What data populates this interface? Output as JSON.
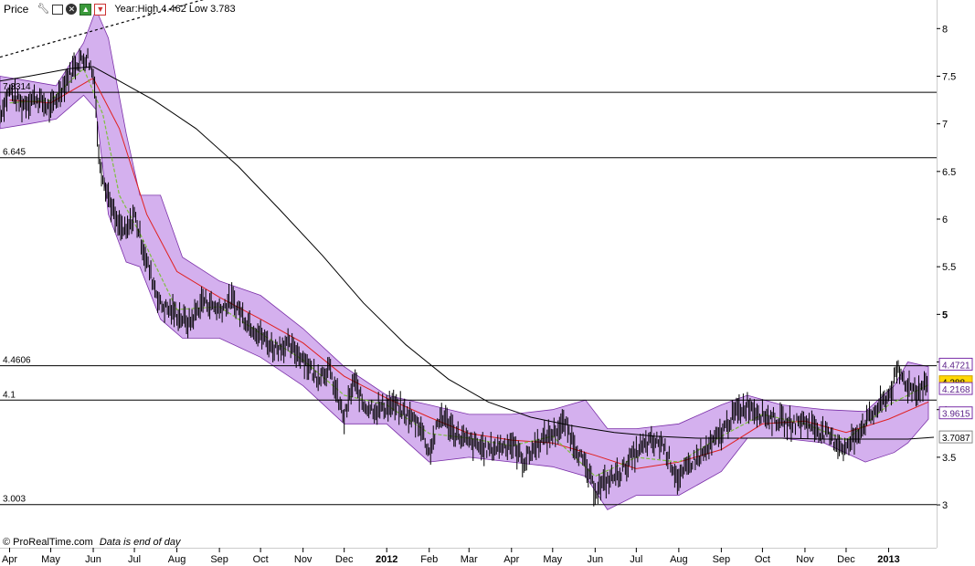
{
  "toolbar": {
    "title": "Price",
    "info": "Year:High 4.462 Low 3.783",
    "icons": [
      "wrench-icon",
      "window-icon",
      "close-icon",
      "arrow-up-icon",
      "arrow-down-icon"
    ]
  },
  "footer": {
    "brand": "© ProRealTime.com",
    "note": "Data is end of day"
  },
  "colors": {
    "band_fill": "#d4b0ee",
    "band_edge": "#7a2fa8",
    "ma_fast": "#7fbf3f",
    "ma_mid": "#e02020",
    "ma_slow": "#000000",
    "candle": "#000000",
    "current_label_bg": "#ffd800"
  },
  "chart_data": {
    "type": "line",
    "ylim": [
      2.55,
      8.3
    ],
    "yticks": [
      3,
      3.5,
      4,
      4.5,
      5,
      5.5,
      6,
      6.5,
      7,
      7.5,
      8
    ],
    "ytick_labels": [
      "3",
      "3.5",
      "4",
      "4.5",
      "5",
      "5.5",
      "6",
      "6.5",
      "7",
      "7.5",
      "8"
    ],
    "xlim": [
      "2011-03-25",
      "2013-02-05"
    ],
    "xticks": [
      {
        "date": "2011-04-01",
        "label": "Apr",
        "bold": false
      },
      {
        "date": "2011-05-01",
        "label": "May",
        "bold": false
      },
      {
        "date": "2011-06-01",
        "label": "Jun",
        "bold": false
      },
      {
        "date": "2011-07-01",
        "label": "Jul",
        "bold": false
      },
      {
        "date": "2011-08-01",
        "label": "Aug",
        "bold": false
      },
      {
        "date": "2011-09-01",
        "label": "Sep",
        "bold": false
      },
      {
        "date": "2011-10-01",
        "label": "Oct",
        "bold": false
      },
      {
        "date": "2011-11-01",
        "label": "Nov",
        "bold": false
      },
      {
        "date": "2011-12-01",
        "label": "Dec",
        "bold": false
      },
      {
        "date": "2012-01-01",
        "label": "2012",
        "bold": true
      },
      {
        "date": "2012-02-01",
        "label": "Feb",
        "bold": false
      },
      {
        "date": "2012-03-01",
        "label": "Mar",
        "bold": false
      },
      {
        "date": "2012-04-01",
        "label": "Apr",
        "bold": false
      },
      {
        "date": "2012-05-01",
        "label": "May",
        "bold": false
      },
      {
        "date": "2012-06-01",
        "label": "Jun",
        "bold": false
      },
      {
        "date": "2012-07-01",
        "label": "Jul",
        "bold": false
      },
      {
        "date": "2012-08-01",
        "label": "Aug",
        "bold": false
      },
      {
        "date": "2012-09-01",
        "label": "Sep",
        "bold": false
      },
      {
        "date": "2012-10-01",
        "label": "Oct",
        "bold": false
      },
      {
        "date": "2012-11-01",
        "label": "Nov",
        "bold": false
      },
      {
        "date": "2012-12-01",
        "label": "Dec",
        "bold": false
      },
      {
        "date": "2013-01-01",
        "label": "2013",
        "bold": true
      }
    ],
    "horizontal_levels": [
      {
        "value": 7.3314,
        "label": "7.3314"
      },
      {
        "value": 6.645,
        "label": "6.645"
      },
      {
        "value": 4.4606,
        "label": "4.4606"
      },
      {
        "value": 4.1,
        "label": "4.1"
      },
      {
        "value": 3.003,
        "label": "3.003"
      }
    ],
    "price": [
      [
        "2011-03-25",
        7.1
      ],
      [
        "2011-04-01",
        7.35
      ],
      [
        "2011-04-10",
        7.2
      ],
      [
        "2011-04-20",
        7.28
      ],
      [
        "2011-05-01",
        7.15
      ],
      [
        "2011-05-10",
        7.4
      ],
      [
        "2011-05-20",
        7.65
      ],
      [
        "2011-05-28",
        7.7
      ],
      [
        "2011-06-02",
        7.45
      ],
      [
        "2011-06-05",
        6.65
      ],
      [
        "2011-06-10",
        6.35
      ],
      [
        "2011-06-18",
        5.95
      ],
      [
        "2011-06-25",
        5.85
      ],
      [
        "2011-07-01",
        6.05
      ],
      [
        "2011-07-10",
        5.55
      ],
      [
        "2011-07-20",
        5.1
      ],
      [
        "2011-08-01",
        5.0
      ],
      [
        "2011-08-10",
        4.9
      ],
      [
        "2011-08-20",
        5.15
      ],
      [
        "2011-09-01",
        5.05
      ],
      [
        "2011-09-10",
        5.15
      ],
      [
        "2011-09-20",
        4.95
      ],
      [
        "2011-10-01",
        4.78
      ],
      [
        "2011-10-10",
        4.65
      ],
      [
        "2011-10-20",
        4.68
      ],
      [
        "2011-11-01",
        4.55
      ],
      [
        "2011-11-10",
        4.35
      ],
      [
        "2011-11-20",
        4.42
      ],
      [
        "2011-12-01",
        3.9
      ],
      [
        "2011-12-08",
        4.3
      ],
      [
        "2011-12-15",
        4.05
      ],
      [
        "2011-12-25",
        4.0
      ],
      [
        "2012-01-05",
        4.05
      ],
      [
        "2012-01-15",
        3.95
      ],
      [
        "2012-01-25",
        3.85
      ],
      [
        "2012-02-01",
        3.55
      ],
      [
        "2012-02-10",
        3.95
      ],
      [
        "2012-02-20",
        3.75
      ],
      [
        "2012-03-01",
        3.65
      ],
      [
        "2012-03-15",
        3.58
      ],
      [
        "2012-04-01",
        3.65
      ],
      [
        "2012-04-10",
        3.45
      ],
      [
        "2012-04-20",
        3.65
      ],
      [
        "2012-05-01",
        3.75
      ],
      [
        "2012-05-10",
        3.85
      ],
      [
        "2012-05-20",
        3.55
      ],
      [
        "2012-06-01",
        3.15
      ],
      [
        "2012-06-10",
        3.25
      ],
      [
        "2012-06-20",
        3.35
      ],
      [
        "2012-07-01",
        3.55
      ],
      [
        "2012-07-10",
        3.65
      ],
      [
        "2012-07-20",
        3.65
      ],
      [
        "2012-08-01",
        3.25
      ],
      [
        "2012-08-10",
        3.45
      ],
      [
        "2012-08-20",
        3.55
      ],
      [
        "2012-09-01",
        3.75
      ],
      [
        "2012-09-10",
        3.95
      ],
      [
        "2012-09-20",
        4.05
      ],
      [
        "2012-10-01",
        3.95
      ],
      [
        "2012-10-10",
        3.9
      ],
      [
        "2012-10-20",
        3.85
      ],
      [
        "2012-11-01",
        3.88
      ],
      [
        "2012-11-10",
        3.8
      ],
      [
        "2012-11-20",
        3.7
      ],
      [
        "2012-12-01",
        3.58
      ],
      [
        "2012-12-10",
        3.78
      ],
      [
        "2012-12-20",
        3.95
      ],
      [
        "2013-01-01",
        4.15
      ],
      [
        "2013-01-08",
        4.4
      ],
      [
        "2013-01-15",
        4.25
      ],
      [
        "2013-01-22",
        4.2
      ],
      [
        "2013-01-30",
        4.29
      ]
    ],
    "ma_fast": [
      [
        "2011-04-01",
        7.22
      ],
      [
        "2011-05-01",
        7.25
      ],
      [
        "2011-05-25",
        7.58
      ],
      [
        "2011-06-08",
        7.1
      ],
      [
        "2011-06-20",
        6.25
      ],
      [
        "2011-07-05",
        5.85
      ],
      [
        "2011-08-01",
        5.05
      ],
      [
        "2011-09-01",
        5.08
      ],
      [
        "2011-10-01",
        4.8
      ],
      [
        "2011-11-01",
        4.52
      ],
      [
        "2011-12-01",
        4.15
      ],
      [
        "2012-01-01",
        4.05
      ],
      [
        "2012-02-01",
        3.75
      ],
      [
        "2012-03-01",
        3.7
      ],
      [
        "2012-04-01",
        3.62
      ],
      [
        "2012-05-01",
        3.72
      ],
      [
        "2012-06-01",
        3.3
      ],
      [
        "2012-07-01",
        3.5
      ],
      [
        "2012-08-01",
        3.45
      ],
      [
        "2012-09-01",
        3.72
      ],
      [
        "2012-10-01",
        3.95
      ],
      [
        "2012-11-01",
        3.85
      ],
      [
        "2012-12-01",
        3.68
      ],
      [
        "2013-01-01",
        4.05
      ],
      [
        "2013-01-30",
        4.26
      ]
    ],
    "ma_mid": [
      [
        "2011-04-01",
        7.25
      ],
      [
        "2011-05-01",
        7.22
      ],
      [
        "2011-06-01",
        7.48
      ],
      [
        "2011-06-20",
        6.95
      ],
      [
        "2011-07-10",
        6.05
      ],
      [
        "2011-08-01",
        5.45
      ],
      [
        "2011-09-01",
        5.18
      ],
      [
        "2011-10-01",
        4.95
      ],
      [
        "2011-11-01",
        4.7
      ],
      [
        "2011-12-01",
        4.35
      ],
      [
        "2012-01-01",
        4.12
      ],
      [
        "2012-02-01",
        3.92
      ],
      [
        "2012-03-01",
        3.75
      ],
      [
        "2012-04-01",
        3.68
      ],
      [
        "2012-05-01",
        3.65
      ],
      [
        "2012-06-01",
        3.52
      ],
      [
        "2012-07-01",
        3.38
      ],
      [
        "2012-08-01",
        3.45
      ],
      [
        "2012-09-01",
        3.58
      ],
      [
        "2012-10-01",
        3.85
      ],
      [
        "2012-11-01",
        3.88
      ],
      [
        "2012-12-01",
        3.76
      ],
      [
        "2013-01-01",
        3.9
      ],
      [
        "2013-01-30",
        4.08
      ]
    ],
    "ma_slow": [
      [
        "2011-03-25",
        7.45
      ],
      [
        "2011-04-15",
        7.5
      ],
      [
        "2011-05-15",
        7.58
      ],
      [
        "2011-06-01",
        7.6
      ],
      [
        "2011-06-20",
        7.45
      ],
      [
        "2011-07-15",
        7.25
      ],
      [
        "2011-08-15",
        6.95
      ],
      [
        "2011-09-15",
        6.55
      ],
      [
        "2011-10-15",
        6.1
      ],
      [
        "2011-11-15",
        5.62
      ],
      [
        "2011-12-15",
        5.12
      ],
      [
        "2012-01-15",
        4.68
      ],
      [
        "2012-02-15",
        4.32
      ],
      [
        "2012-03-15",
        4.08
      ],
      [
        "2012-04-15",
        3.92
      ],
      [
        "2012-05-15",
        3.83
      ],
      [
        "2012-06-15",
        3.76
      ],
      [
        "2012-07-15",
        3.72
      ],
      [
        "2012-08-15",
        3.7
      ],
      [
        "2012-09-15",
        3.7
      ],
      [
        "2012-10-15",
        3.7
      ],
      [
        "2012-11-15",
        3.69
      ],
      [
        "2012-12-15",
        3.69
      ],
      [
        "2013-01-15",
        3.69
      ],
      [
        "2013-02-03",
        3.71
      ]
    ],
    "band_upper": [
      [
        "2011-03-25",
        7.5
      ],
      [
        "2011-04-15",
        7.45
      ],
      [
        "2011-05-05",
        7.4
      ],
      [
        "2011-05-25",
        7.85
      ],
      [
        "2011-06-03",
        8.2
      ],
      [
        "2011-06-12",
        7.9
      ],
      [
        "2011-06-25",
        6.9
      ],
      [
        "2011-07-05",
        6.25
      ],
      [
        "2011-07-20",
        6.25
      ],
      [
        "2011-08-05",
        5.6
      ],
      [
        "2011-09-01",
        5.35
      ],
      [
        "2011-10-01",
        5.2
      ],
      [
        "2011-11-01",
        4.85
      ],
      [
        "2011-12-01",
        4.45
      ],
      [
        "2012-01-01",
        4.15
      ],
      [
        "2012-02-01",
        4.05
      ],
      [
        "2012-03-01",
        3.95
      ],
      [
        "2012-04-01",
        3.95
      ],
      [
        "2012-05-01",
        4.0
      ],
      [
        "2012-05-25",
        4.1
      ],
      [
        "2012-06-10",
        3.8
      ],
      [
        "2012-07-01",
        3.8
      ],
      [
        "2012-08-01",
        3.85
      ],
      [
        "2012-09-01",
        4.05
      ],
      [
        "2012-09-20",
        4.15
      ],
      [
        "2012-10-15",
        4.05
      ],
      [
        "2012-11-15",
        4.0
      ],
      [
        "2012-12-15",
        3.98
      ],
      [
        "2013-01-05",
        4.25
      ],
      [
        "2013-01-15",
        4.5
      ],
      [
        "2013-01-30",
        4.45
      ]
    ],
    "band_lower": [
      [
        "2011-03-25",
        6.95
      ],
      [
        "2011-04-15",
        7.0
      ],
      [
        "2011-05-05",
        7.05
      ],
      [
        "2011-05-25",
        7.3
      ],
      [
        "2011-06-03",
        7.15
      ],
      [
        "2011-06-12",
        6.05
      ],
      [
        "2011-06-25",
        5.55
      ],
      [
        "2011-07-05",
        5.5
      ],
      [
        "2011-07-20",
        4.95
      ],
      [
        "2011-08-05",
        4.75
      ],
      [
        "2011-09-01",
        4.75
      ],
      [
        "2011-10-01",
        4.55
      ],
      [
        "2011-11-01",
        4.25
      ],
      [
        "2011-12-01",
        3.85
      ],
      [
        "2012-01-01",
        3.85
      ],
      [
        "2012-02-01",
        3.45
      ],
      [
        "2012-03-01",
        3.5
      ],
      [
        "2012-04-01",
        3.45
      ],
      [
        "2012-05-01",
        3.4
      ],
      [
        "2012-05-25",
        3.3
      ],
      [
        "2012-06-10",
        2.95
      ],
      [
        "2012-07-01",
        3.1
      ],
      [
        "2012-08-01",
        3.1
      ],
      [
        "2012-09-01",
        3.35
      ],
      [
        "2012-09-20",
        3.7
      ],
      [
        "2012-10-15",
        3.7
      ],
      [
        "2012-11-15",
        3.65
      ],
      [
        "2012-12-15",
        3.45
      ],
      [
        "2013-01-05",
        3.55
      ],
      [
        "2013-01-15",
        3.65
      ],
      [
        "2013-01-30",
        3.9
      ]
    ],
    "trendline": [
      [
        "2011-03-25",
        7.7
      ],
      [
        "2011-09-25",
        8.45
      ]
    ],
    "right_labels": [
      {
        "value": 4.4721,
        "label": "4.4721",
        "style": "band"
      },
      {
        "value": 4.288,
        "label": "4.288",
        "style": "current"
      },
      {
        "value": 4.2168,
        "label": "4.2168",
        "style": "band"
      },
      {
        "value": 3.9615,
        "label": "3.9615",
        "style": "band"
      },
      {
        "value": 3.7087,
        "label": "3.7087",
        "style": "plain"
      }
    ]
  }
}
